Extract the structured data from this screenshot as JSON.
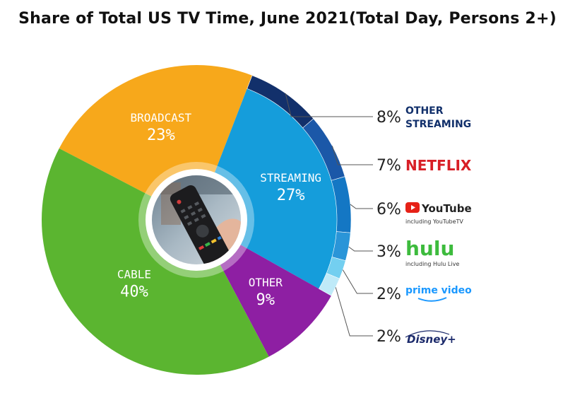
{
  "title": "Share of Total US TV Time, June 2021(Total Day, Persons 2+)",
  "chart_data": {
    "type": "pie",
    "title": "Share of Total US TV Time, June 2021(Total Day, Persons 2+)",
    "slices": [
      {
        "label": "BROADCAST",
        "value": 23,
        "value_label": "23%",
        "color": "#F7A81B"
      },
      {
        "label": "STREAMING",
        "value": 27,
        "value_label": "27%",
        "color": "#159DDB"
      },
      {
        "label": "OTHER",
        "value": 9,
        "value_label": "9%",
        "color": "#8E1FA3"
      },
      {
        "label": "CABLE",
        "value": 40,
        "value_label": "40%",
        "color": "#5BB530"
      }
    ],
    "streaming_breakdown": [
      {
        "label": "OTHER STREAMING",
        "line1": "OTHER",
        "line2": "STREAMING",
        "value": 8,
        "value_label": "8%",
        "color": "#12306B"
      },
      {
        "label": "NETFLIX",
        "value": 7,
        "value_label": "7%",
        "color": "#1B58A8"
      },
      {
        "label": "YouTube",
        "sub": "including YouTubeTV",
        "value": 6,
        "value_label": "6%",
        "color": "#1477C4"
      },
      {
        "label": "hulu",
        "sub": "including Hulu Live",
        "value": 3,
        "value_label": "3%",
        "color": "#2A95D8"
      },
      {
        "label": "prime video",
        "value": 2,
        "value_label": "2%",
        "color": "#73CFF0"
      },
      {
        "label": "Disney+",
        "value": 2,
        "value_label": "2%",
        "color": "#BFEAF8"
      }
    ],
    "center_image": "tv-remote-photo"
  }
}
